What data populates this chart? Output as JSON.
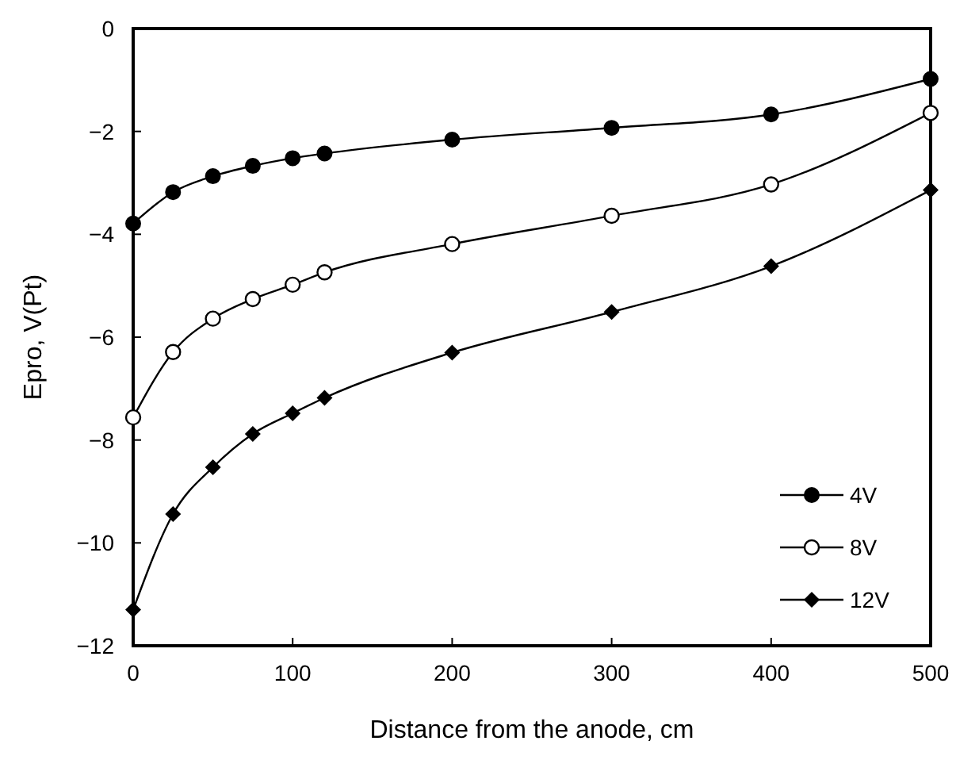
{
  "chart_data": {
    "type": "line",
    "xlabel": "Distance from the anode, cm",
    "ylabel": "Epro, V(Pt)",
    "x": [
      0,
      25,
      50,
      75,
      100,
      120,
      200,
      300,
      400,
      500
    ],
    "series": [
      {
        "name": "4V",
        "color": "#000000",
        "marker": "circle",
        "values": [
          -3.79,
          -3.18,
          -2.87,
          -2.67,
          -2.52,
          -2.43,
          -2.16,
          -1.93,
          -1.67,
          -0.98
        ]
      },
      {
        "name": "8V",
        "color": "#000000",
        "marker": "circle-open",
        "values": [
          -7.56,
          -6.29,
          -5.64,
          -5.26,
          -4.98,
          -4.74,
          -4.19,
          -3.64,
          -3.03,
          -1.64
        ]
      },
      {
        "name": "12V",
        "color": "#000000",
        "marker": "diamond",
        "values": [
          -11.3,
          -9.44,
          -8.53,
          -7.88,
          -7.48,
          -7.18,
          -6.3,
          -5.51,
          -4.62,
          -3.14
        ]
      }
    ],
    "xlim": [
      0,
      500
    ],
    "xticks": [
      0,
      100,
      200,
      300,
      400,
      500
    ],
    "ylim": [
      -12,
      0
    ],
    "yticks": [
      -12,
      -10,
      -8,
      -6,
      -4,
      -2,
      0
    ],
    "grid": false,
    "legend": "bottom right",
    "line_style": "solid"
  }
}
